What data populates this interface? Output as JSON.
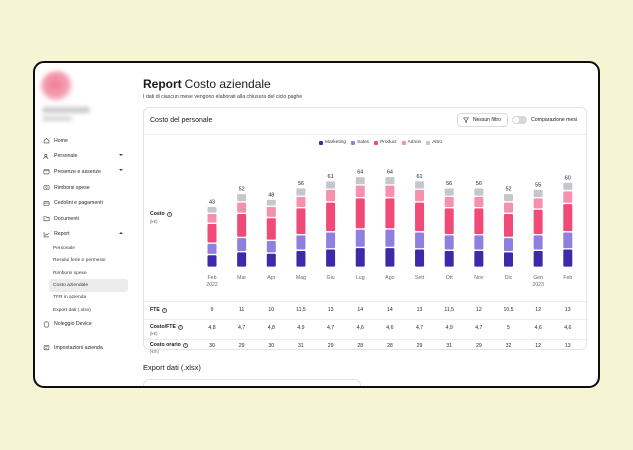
{
  "sidebar": {
    "items": [
      {
        "label": "Home",
        "icon": "home-icon"
      },
      {
        "label": "Personale",
        "icon": "users-icon",
        "chevron": "down"
      },
      {
        "label": "Presenze e assenze",
        "icon": "calendar-icon",
        "chevron": "down"
      },
      {
        "label": "Rimborsi spese",
        "icon": "receipt-icon"
      },
      {
        "label": "Cedolini e pagamenti",
        "icon": "wallet-icon"
      },
      {
        "label": "Documenti",
        "icon": "folder-icon"
      },
      {
        "label": "Report",
        "icon": "chart-icon",
        "chevron": "up"
      }
    ],
    "report_subitems": [
      "Personale",
      "Residui ferie e permessi",
      "Rimborsi spese",
      "Costo aziendale",
      "TFR in azienda",
      "Export dati (.xlsx)"
    ],
    "active_subitem": "Costo aziendale",
    "bottom_items": [
      {
        "label": "Noleggio Device",
        "icon": "device-icon"
      },
      {
        "label": "Impostazioni azienda",
        "icon": "settings-icon"
      }
    ]
  },
  "header": {
    "title_bold": "Report",
    "title_rest": "Costo aziendale",
    "subtitle": "I dati di ciascun mese vengono elaborati alla chiusura del ciclo paghe"
  },
  "card": {
    "title": "Costo del personale",
    "filter_label": "Nessun filtro",
    "toggle_label": "Comparazione mesi"
  },
  "rows": {
    "costo": {
      "label": "Costo",
      "unit": "(k€)"
    },
    "fte": {
      "label": "FTE"
    },
    "costo_fte": {
      "label": "Costo/FTE",
      "unit": "(k€)"
    },
    "costo_orario": {
      "label": "Costo orario",
      "unit": "(€/h)"
    }
  },
  "export": {
    "title": "Export dati (.xlsx)"
  },
  "colors": {
    "marketing": "#3d2aa8",
    "sales": "#8f80e0",
    "product": "#f04a78",
    "admin": "#f590ae",
    "altro": "#c6c6cc"
  },
  "chart_data": {
    "type": "bar",
    "stacked": true,
    "categories": [
      "Feb 2022",
      "Mar",
      "Apr",
      "Mag",
      "Giu",
      "Lug",
      "Ago",
      "Sett",
      "Ott",
      "Nov",
      "Dic",
      "Gen 2023",
      "Feb"
    ],
    "totals": [
      43,
      52,
      48,
      56,
      61,
      64,
      64,
      61,
      56,
      56,
      52,
      55,
      60
    ],
    "series": [
      {
        "name": "Marketing",
        "values": [
          9,
          11,
          10,
          12,
          13,
          14,
          14,
          13,
          12,
          12,
          11,
          12,
          13
        ]
      },
      {
        "name": "Sales",
        "values": [
          8,
          10,
          9,
          11,
          12,
          13,
          13,
          12,
          11,
          11,
          10,
          11,
          12
        ]
      },
      {
        "name": "Product",
        "values": [
          14,
          17,
          16,
          19,
          21,
          22,
          22,
          21,
          19,
          19,
          17,
          18,
          20
        ]
      },
      {
        "name": "Admin",
        "values": [
          7,
          8,
          8,
          8,
          9,
          9,
          9,
          9,
          8,
          8,
          8,
          8,
          9
        ]
      },
      {
        "name": "Altro",
        "values": [
          5,
          6,
          5,
          6,
          6,
          6,
          6,
          6,
          6,
          6,
          6,
          6,
          6
        ]
      }
    ],
    "legend_position": "top-right",
    "fte": [
      "9",
      "11",
      "10",
      "11,5",
      "13",
      "14",
      "14",
      "13",
      "11,5",
      "12",
      "10,5",
      "12",
      "13"
    ],
    "costo_fte": [
      "4,8",
      "4,7",
      "4,8",
      "4,9",
      "4,7",
      "4,6",
      "4,6",
      "4,7",
      "4,9",
      "4,7",
      "5",
      "4,6",
      "4,6"
    ],
    "costo_orario": [
      "30",
      "29",
      "30",
      "31",
      "29",
      "28",
      "28",
      "29",
      "31",
      "29",
      "32",
      "12",
      "13"
    ]
  }
}
